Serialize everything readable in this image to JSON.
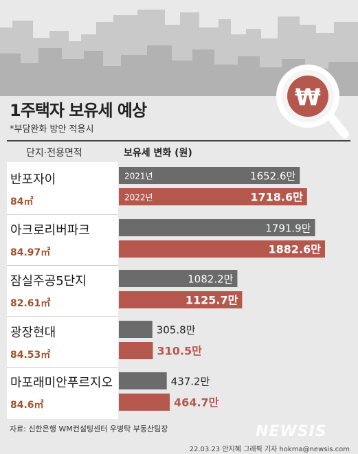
{
  "header": {
    "title": "1주택자 보유세 예상",
    "subtitle": "*부담완화 방안 적용시"
  },
  "columns": {
    "left": "단지·전용면적",
    "right": "보유세 변화 (원)"
  },
  "icon": {
    "name": "won-magnifier-icon",
    "symbol": "₩",
    "color": "#b5574c"
  },
  "colors": {
    "y2021": "#6b6b6b",
    "y2022": "#b5574c",
    "area_text": "#a0522d"
  },
  "chart_data": {
    "type": "bar",
    "orientation": "horizontal",
    "categories": [
      "반포자이",
      "아크로리버파크",
      "잠실주공5단지",
      "광장현대",
      "마포래미안푸르지오"
    ],
    "areas": [
      "84㎡",
      "84.97㎡",
      "82.61㎡",
      "84.53㎡",
      "84.6㎡"
    ],
    "series": [
      {
        "name": "2021년",
        "values": [
          1652.6,
          1791.9,
          1082.2,
          305.8,
          437.2
        ],
        "labels": [
          "1652.6만",
          "1791.9만",
          "1082.2만",
          "305.8만",
          "437.2만"
        ]
      },
      {
        "name": "2022년",
        "values": [
          1718.6,
          1882.6,
          1125.7,
          310.5,
          464.7
        ],
        "labels": [
          "1718.6만",
          "1882.6만",
          "1125.7만",
          "310.5만",
          "464.7만"
        ]
      }
    ],
    "xlim": [
      0,
      1882.6
    ],
    "unit": "만"
  },
  "footer": {
    "source": "자료: 신한은행 WM컨설팅센터 우병탁 부동산팀장",
    "credit": "22.03.23 안지혜 그래픽 기자 hokma@newsis.com",
    "logo": "NEWSIS"
  }
}
